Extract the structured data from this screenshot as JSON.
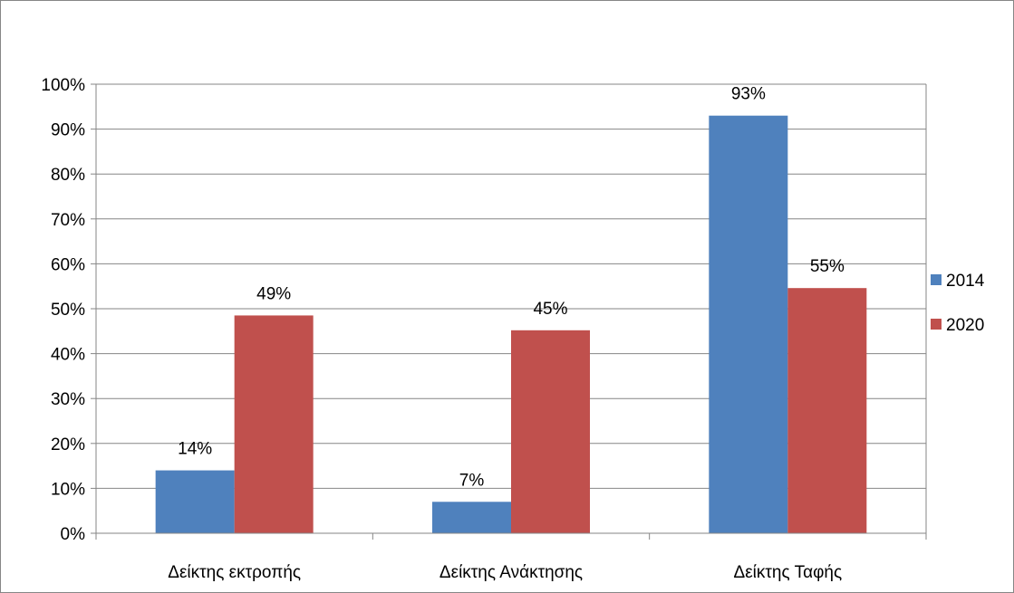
{
  "chart_data": {
    "type": "bar",
    "categories": [
      "Δείκτης εκτροπής",
      "Δείκτης Ανάκτησης",
      "Δείκτης Ταφής"
    ],
    "series": [
      {
        "name": "2014",
        "color": "#4F81BD",
        "values": [
          0.14,
          0.07,
          0.93
        ],
        "labels": [
          "14%",
          "7%",
          "93%"
        ]
      },
      {
        "name": "2020",
        "color": "#C0504D",
        "values": [
          0.485,
          0.452,
          0.546
        ],
        "labels": [
          "49%",
          "45%",
          "55%"
        ]
      }
    ],
    "ylim": [
      0,
      1
    ],
    "yticks": [
      {
        "value": 0,
        "label": "0%"
      },
      {
        "value": 0.1,
        "label": "10%"
      },
      {
        "value": 0.2,
        "label": "20%"
      },
      {
        "value": 0.3,
        "label": "30%"
      },
      {
        "value": 0.4,
        "label": "40%"
      },
      {
        "value": 0.5,
        "label": "50%"
      },
      {
        "value": 0.6,
        "label": "60%"
      },
      {
        "value": 0.7,
        "label": "70%"
      },
      {
        "value": 0.8,
        "label": "80%"
      },
      {
        "value": 0.9,
        "label": "90%"
      },
      {
        "value": 1,
        "label": "100%"
      }
    ],
    "grid": true,
    "legend": "right",
    "title": "",
    "xlabel": "",
    "ylabel": ""
  }
}
